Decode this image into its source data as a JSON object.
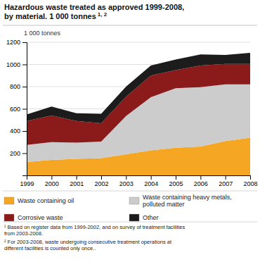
{
  "chart_data": {
    "type": "area",
    "stacked": true,
    "title": "Hazardous waste treated as approved 1999-2008,\nby material. 1 000 tonnes",
    "title_superscript": "1, 2",
    "ylabel": "1 000 tonnes",
    "x": [
      1999,
      2000,
      2001,
      2002,
      2003,
      2004,
      2005,
      2006,
      2007,
      2008
    ],
    "series": [
      {
        "name": "Waste containing oil",
        "color": "#f5a623",
        "values": [
          120,
          140,
          150,
          155,
          190,
          225,
          250,
          260,
          310,
          340
        ]
      },
      {
        "name": "Waste containing heavy metals,\npolluted matter",
        "color": "#cccccc",
        "values": [
          155,
          160,
          145,
          150,
          345,
          480,
          535,
          535,
          510,
          480
        ]
      },
      {
        "name": "Corrosive waste",
        "color": "#8b1a1a",
        "values": [
          215,
          240,
          195,
          165,
          175,
          195,
          165,
          195,
          185,
          185
        ]
      },
      {
        "name": "Other",
        "color": "#1c1c1c",
        "values": [
          60,
          80,
          70,
          85,
          90,
          90,
          95,
          100,
          80,
          100
        ]
      }
    ],
    "xlim": [
      1999,
      2008
    ],
    "xticks": [
      1999,
      2000,
      2001,
      2002,
      2003,
      2004,
      2005,
      2006,
      2007,
      2008
    ],
    "ylim": [
      0,
      1200
    ],
    "yticks": [
      200,
      400,
      600,
      800,
      1000,
      1200
    ],
    "grid": true,
    "legend": "bottom",
    "footnotes": [
      "¹ Based on register data from 1999-2002, and on survey of treatment facilities\nfrom 2003-2008.",
      "² For 2003-2008, waste undergoing consecutive treatment operations at\ndifferent facilities is counted only once.."
    ]
  }
}
